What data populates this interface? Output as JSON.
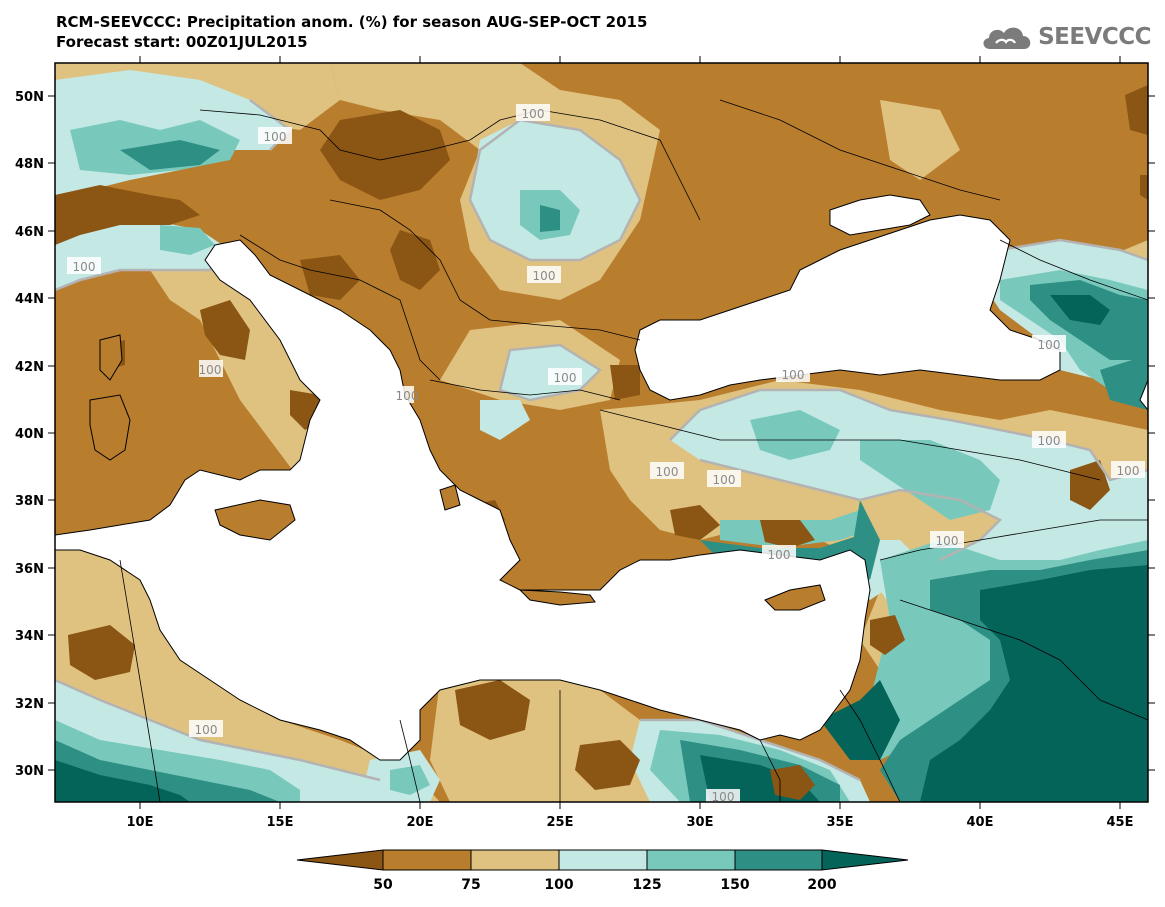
{
  "header": {
    "title_line1": "RCM-SEEVCCC: Precipitation anom. (%) for season AUG-SEP-OCT 2015",
    "title_line2": "Forecast start: 00Z01JUL2015",
    "logo_text": "SEEVCCC"
  },
  "map": {
    "lat_labels": [
      "50N",
      "48N",
      "46N",
      "44N",
      "42N",
      "40N",
      "38N",
      "36N",
      "34N",
      "32N",
      "30N"
    ],
    "lon_labels": [
      "10E",
      "15E",
      "20E",
      "25E",
      "30E",
      "35E",
      "40E",
      "45E"
    ],
    "contour_labels": [
      "100",
      "100",
      "100",
      "100",
      "100",
      "100",
      "100",
      "100",
      "100",
      "100",
      "100",
      "100",
      "100",
      "100",
      "100",
      "100",
      "100"
    ]
  },
  "colorbar": {
    "labels": [
      "50",
      "75",
      "100",
      "125",
      "150",
      "200"
    ],
    "colors": [
      "#8b5514",
      "#b97d2e",
      "#e0c280",
      "#c4e9e5",
      "#78c9bc",
      "#2e8f84",
      "#056459"
    ]
  },
  "palette": {
    "very_dry": "#8b5514",
    "dry": "#b97d2e",
    "slightly_dry": "#e0c280",
    "slightly_wet": "#c4e9e5",
    "wet": "#78c9bc",
    "very_wet": "#2e8f84",
    "extreme_wet": "#056459",
    "sea": "#ffffff",
    "contour": "#b3b3b3"
  }
}
